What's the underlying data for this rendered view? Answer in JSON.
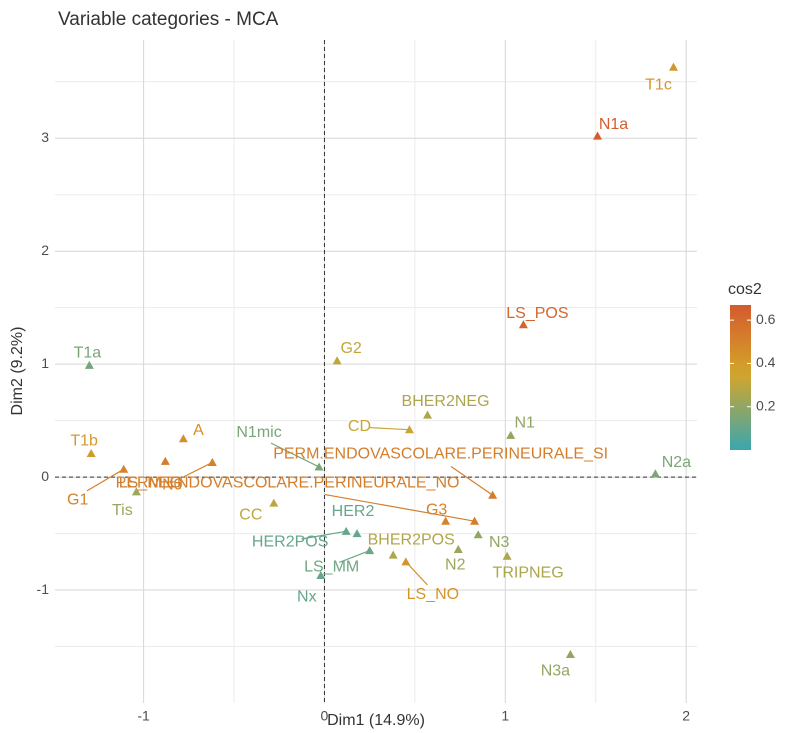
{
  "chart_data": {
    "type": "scatter",
    "title": "Variable categories - MCA",
    "x_label": "Dim1 (14.9%)",
    "y_label": "Dim2 (9.2%)",
    "xlim": [
      -1.49,
      2.06
    ],
    "ylim": [
      -2.0,
      3.87
    ],
    "xticks": [
      -1,
      0,
      1,
      2
    ],
    "yticks": [
      -1,
      0,
      1,
      2,
      3
    ],
    "grid": true,
    "hline": 0,
    "vline": 0,
    "legend": {
      "title": "cos2",
      "lim": [
        0.0,
        0.67
      ],
      "ticks": [
        0.2,
        0.4,
        0.6
      ],
      "position": "right"
    },
    "color_scale": {
      "low": "#3aa6b0",
      "mid": "#d4a62a",
      "high": "#d45a2e",
      "midpoint": 0.35
    },
    "points": [
      {
        "label": "T1c",
        "x": 1.93,
        "y": 3.63,
        "cos2": 0.42
      },
      {
        "label": "N1a",
        "x": 1.51,
        "y": 3.02,
        "cos2": 0.66
      },
      {
        "label": "LS_POS",
        "x": 1.1,
        "y": 1.35,
        "cos2": 0.62
      },
      {
        "label": "G2",
        "x": 0.07,
        "y": 1.03,
        "cos2": 0.3
      },
      {
        "label": "T1a",
        "x": -1.3,
        "y": 0.99,
        "cos2": 0.14
      },
      {
        "label": "T1b",
        "x": -1.29,
        "y": 0.21,
        "cos2": 0.4
      },
      {
        "label": "A",
        "x": -0.78,
        "y": 0.34,
        "cos2": 0.45
      },
      {
        "label": "G1",
        "x": -1.11,
        "y": 0.07,
        "cos2": 0.5
      },
      {
        "label": "Tis",
        "x": -1.04,
        "y": -0.13,
        "cos2": 0.22
      },
      {
        "label": "LS_NEG",
        "x": -0.88,
        "y": 0.14,
        "cos2": 0.52
      },
      {
        "label": "N0",
        "x": -0.62,
        "y": 0.13,
        "cos2": 0.5
      },
      {
        "label": "N1mic",
        "x": -0.03,
        "y": 0.09,
        "cos2": 0.14
      },
      {
        "label": "CC",
        "x": -0.28,
        "y": -0.23,
        "cos2": 0.3
      },
      {
        "label": "CD",
        "x": 0.47,
        "y": 0.42,
        "cos2": 0.32
      },
      {
        "label": "BHER2NEG",
        "x": 0.57,
        "y": 0.55,
        "cos2": 0.26
      },
      {
        "label": "N1",
        "x": 1.03,
        "y": 0.37,
        "cos2": 0.2
      },
      {
        "label": "PERM.ENDOVASCOLARE.PERINEURALE_SI",
        "x": 0.93,
        "y": -0.16,
        "cos2": 0.52
      },
      {
        "label": "N2a",
        "x": 1.83,
        "y": 0.03,
        "cos2": 0.15
      },
      {
        "label": "PERM.ENDOVASCOLARE.PERINEURALE_NO",
        "x": 0.83,
        "y": -0.39,
        "cos2": 0.52
      },
      {
        "label": "G3",
        "x": 0.67,
        "y": -0.39,
        "cos2": 0.5
      },
      {
        "label": "N3",
        "x": 0.85,
        "y": -0.51,
        "cos2": 0.2
      },
      {
        "label": "N2",
        "x": 0.74,
        "y": -0.64,
        "cos2": 0.22
      },
      {
        "label": "TRIPNEG",
        "x": 1.01,
        "y": -0.7,
        "cos2": 0.26
      },
      {
        "label": "BHER2POS",
        "x": 0.38,
        "y": -0.69,
        "cos2": 0.27
      },
      {
        "label": "HER2",
        "x": 0.18,
        "y": -0.5,
        "cos2": 0.1
      },
      {
        "label": "HER2POS",
        "x": 0.12,
        "y": -0.48,
        "cos2": 0.1
      },
      {
        "label": "LS_MM",
        "x": 0.25,
        "y": -0.65,
        "cos2": 0.12
      },
      {
        "label": "LS_NO",
        "x": 0.45,
        "y": -0.75,
        "cos2": 0.42
      },
      {
        "label": "Nx",
        "x": -0.02,
        "y": -0.87,
        "cos2": 0.1
      },
      {
        "label": "N3a",
        "x": 1.36,
        "y": -1.57,
        "cos2": 0.2
      }
    ]
  }
}
